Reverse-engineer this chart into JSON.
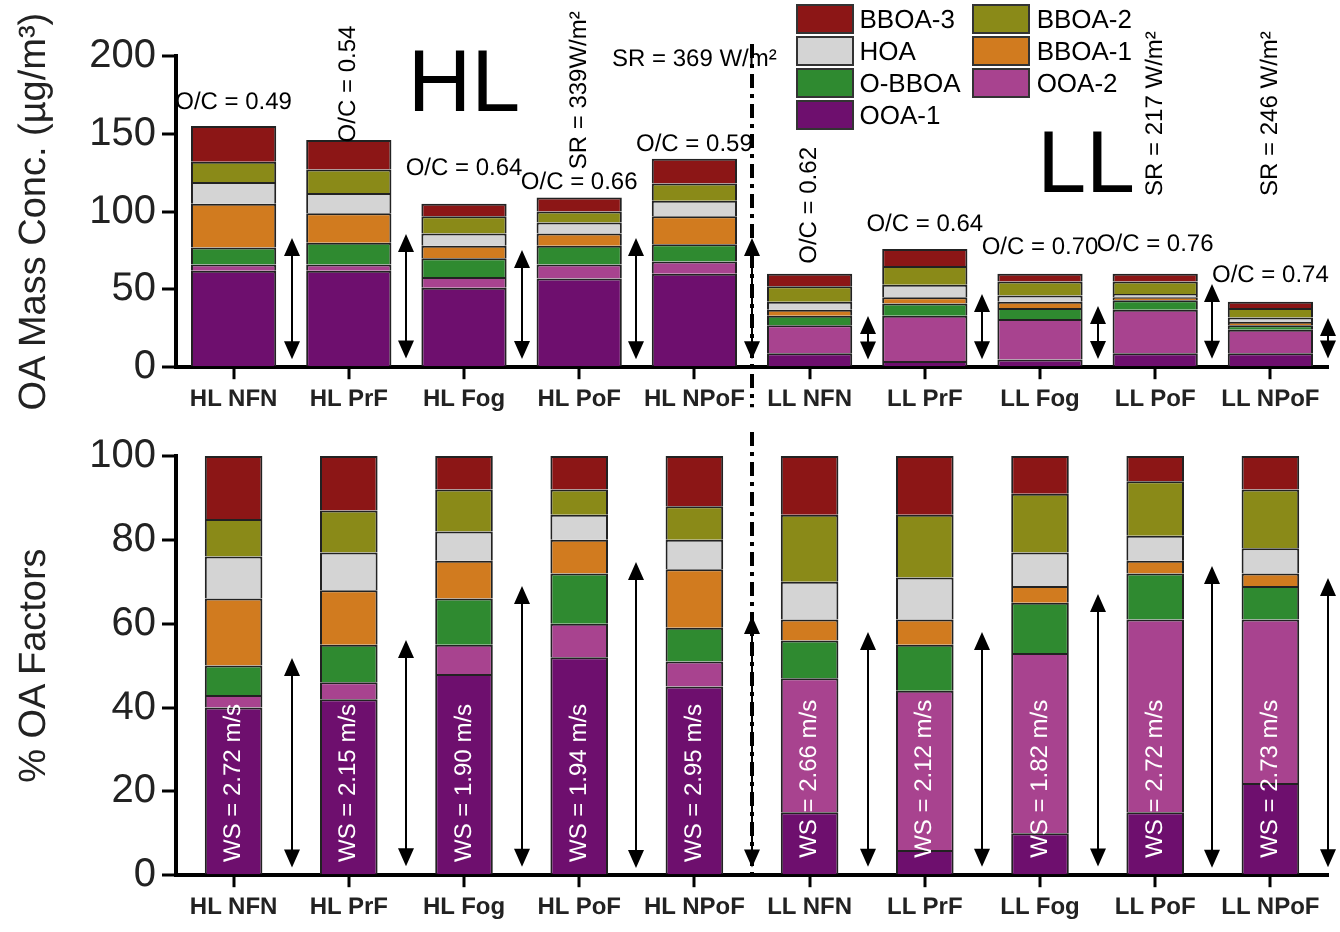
{
  "chart_data": [
    {
      "type": "bar",
      "stacked": true,
      "ylabel": "OA Mass Conc. (µg/m³)",
      "legend": "top right",
      "categories": [
        "HL NFN",
        "HL PrF",
        "HL Fog",
        "HL PoF",
        "HL NPoF",
        "LL NFN",
        "LL PrF",
        "LL Fog",
        "LL PoF",
        "LL NPoF"
      ],
      "series": [
        {
          "name": "OOA-1",
          "color": "#6e0f6e",
          "values": [
            62,
            62,
            51,
            57,
            60,
            9,
            4,
            5,
            9,
            9
          ]
        },
        {
          "name": "OOA-2",
          "color": "#a8438f",
          "values": [
            4,
            4,
            7,
            9,
            8,
            18,
            29,
            26,
            28,
            15
          ]
        },
        {
          "name": "O-BBOA",
          "color": "#2f8a30",
          "values": [
            11,
            14,
            12,
            12,
            11,
            6,
            8,
            7,
            6,
            3
          ]
        },
        {
          "name": "BBOA-1",
          "color": "#d17b1f",
          "values": [
            28,
            19,
            8,
            8,
            18,
            4,
            4,
            4,
            2,
            2
          ]
        },
        {
          "name": "HOA",
          "color": "#d4d4d4",
          "values": [
            14,
            13,
            8,
            7,
            10,
            5,
            8,
            4,
            2,
            3
          ]
        },
        {
          "name": "BBOA-2",
          "color": "#8a8a18",
          "values": [
            13,
            15,
            11,
            7,
            11,
            10,
            12,
            9,
            8,
            6
          ]
        },
        {
          "name": "BBOA-3",
          "color": "#8c1616",
          "values": [
            23,
            19,
            8,
            9,
            16,
            8,
            11,
            5,
            5,
            4
          ]
        }
      ],
      "ylim": [
        0,
        200
      ],
      "yticks": [
        0,
        50,
        100,
        150,
        200
      ],
      "annotations": [
        "HL",
        "LL",
        "O/C = 0.49",
        "O/C = 0.54",
        "O/C = 0.64",
        "O/C = 0.66",
        "SR = 339W/m²",
        "O/C = 0.59",
        "SR = 369 W/m²",
        "O/C = 0.62",
        "O/C = 0.64",
        "O/C = 0.70",
        "O/C = 0.76",
        "SR = 217 W/m²",
        "O/C = 0.74",
        "SR = 246 W/m²"
      ]
    },
    {
      "type": "bar",
      "stacked": true,
      "ylabel": "% OA Factors",
      "categories": [
        "HL NFN",
        "HL PrF",
        "HL Fog",
        "HL PoF",
        "HL NPoF",
        "LL NFN",
        "LL PrF",
        "LL Fog",
        "LL PoF",
        "LL NPoF"
      ],
      "series": [
        {
          "color": "#6e0f6e",
          "values": [
            40,
            42,
            48,
            52,
            45,
            15,
            6,
            10,
            15,
            22
          ]
        },
        {
          "color": "#a8438f",
          "values": [
            3,
            4,
            7,
            8,
            6,
            32,
            38,
            43,
            46,
            39
          ]
        },
        {
          "color": "#2f8a30",
          "values": [
            7,
            9,
            11,
            12,
            8,
            9,
            11,
            12,
            11,
            8
          ]
        },
        {
          "color": "#d17b1f",
          "values": [
            16,
            13,
            9,
            8,
            14,
            5,
            6,
            4,
            3,
            3
          ]
        },
        {
          "color": "#d4d4d4",
          "values": [
            10,
            9,
            7,
            6,
            7,
            9,
            10,
            8,
            6,
            6
          ]
        },
        {
          "color": "#8a8a18",
          "values": [
            9,
            10,
            10,
            6,
            8,
            16,
            15,
            14,
            13,
            14
          ]
        },
        {
          "color": "#8c1616",
          "values": [
            15,
            13,
            8,
            8,
            12,
            14,
            14,
            9,
            6,
            8
          ]
        }
      ],
      "ylim": [
        0,
        100
      ],
      "yticks": [
        0,
        20,
        40,
        60,
        80,
        100
      ],
      "annotations": [
        "WS = 2.72 m/s",
        "WS = 2.15 m/s",
        "WS = 1.90 m/s",
        "WS = 1.94 m/s",
        "WS = 2.95 m/s",
        "WS = 2.66 m/s",
        "WS = 2.12 m/s",
        "WS = 1.82 m/s",
        "WS = 2.72 m/s",
        "WS = 2.73 m/s"
      ]
    }
  ]
}
